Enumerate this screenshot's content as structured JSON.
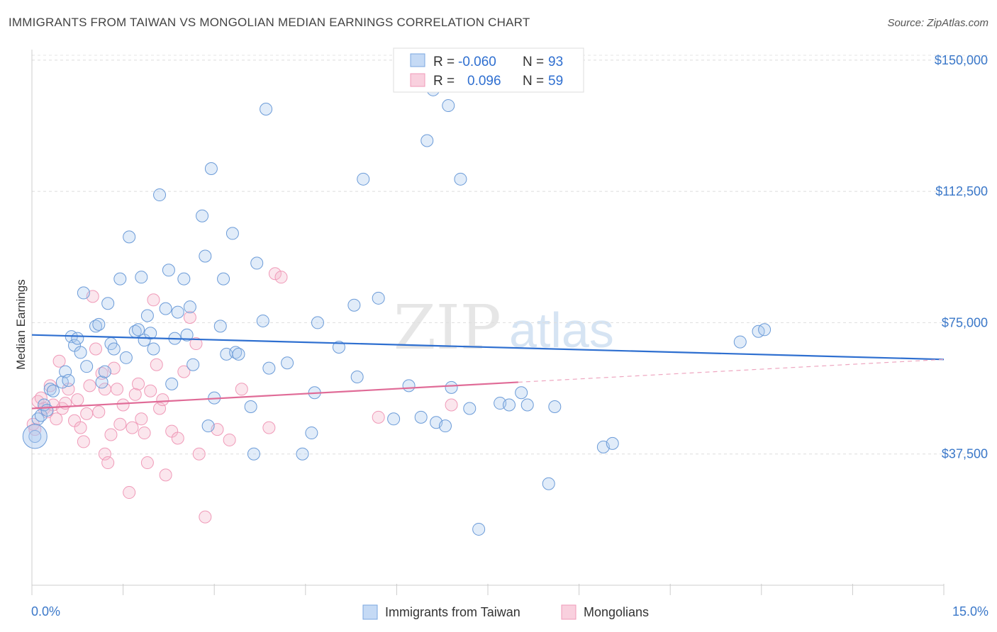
{
  "title": "IMMIGRANTS FROM TAIWAN VS MONGOLIAN MEDIAN EARNINGS CORRELATION CHART",
  "source": "Source: ZipAtlas.com",
  "watermark": {
    "zip": "ZIP",
    "atlas": "atlas"
  },
  "legend_top": {
    "rows": [
      {
        "r_label": "R =",
        "r_value": "-0.060",
        "n_label": "N =",
        "n_value": "93",
        "color": "#a9c8ef"
      },
      {
        "r_label": "R =",
        "r_value": "0.096",
        "n_label": "N =",
        "n_value": "59",
        "color": "#f4b8cc"
      }
    ]
  },
  "legend_bottom": [
    {
      "label": "Immigrants from Taiwan",
      "color": "#a9c8ef"
    },
    {
      "label": "Mongolians",
      "color": "#f4b8cc"
    }
  ],
  "chart_data": {
    "type": "scatter",
    "ylabel": "Median Earnings",
    "xlim": [
      0,
      15
    ],
    "ylim": [
      0,
      153000
    ],
    "x_tick_labels": [
      "0.0%",
      "15.0%"
    ],
    "y_ticks": [
      {
        "value": 37500,
        "label": "$37,500"
      },
      {
        "value": 75000,
        "label": "$75,000"
      },
      {
        "value": 112500,
        "label": "$112,500"
      },
      {
        "value": 150000,
        "label": "$150,000"
      }
    ],
    "series": [
      {
        "name": "Immigrants from Taiwan",
        "color": "#7aa7e0",
        "trend": {
          "x0": 0,
          "y0": 71500,
          "x1": 15,
          "y1": 64500,
          "color": "#2e6fd0"
        },
        "points": [
          [
            0.05,
            42500
          ],
          [
            0.1,
            47500
          ],
          [
            0.15,
            48500
          ],
          [
            0.2,
            51500
          ],
          [
            0.25,
            50000
          ],
          [
            0.3,
            56000
          ],
          [
            0.35,
            55500
          ],
          [
            0.5,
            58000
          ],
          [
            0.55,
            61000
          ],
          [
            0.6,
            58500
          ],
          [
            0.65,
            71000
          ],
          [
            0.7,
            68500
          ],
          [
            0.75,
            70500
          ],
          [
            0.8,
            66500
          ],
          [
            0.85,
            83500
          ],
          [
            0.9,
            62500
          ],
          [
            1.05,
            74000
          ],
          [
            1.1,
            74500
          ],
          [
            1.15,
            58000
          ],
          [
            1.2,
            61000
          ],
          [
            1.25,
            80500
          ],
          [
            1.3,
            69000
          ],
          [
            1.35,
            67500
          ],
          [
            1.45,
            87500
          ],
          [
            1.55,
            65000
          ],
          [
            1.6,
            99500
          ],
          [
            1.7,
            72500
          ],
          [
            1.75,
            73000
          ],
          [
            1.8,
            88000
          ],
          [
            1.85,
            70000
          ],
          [
            1.9,
            77000
          ],
          [
            1.95,
            72000
          ],
          [
            2.0,
            67500
          ],
          [
            2.1,
            111500
          ],
          [
            2.2,
            79000
          ],
          [
            2.25,
            90000
          ],
          [
            2.3,
            57500
          ],
          [
            2.35,
            70500
          ],
          [
            2.4,
            78000
          ],
          [
            2.5,
            87500
          ],
          [
            2.55,
            71500
          ],
          [
            2.6,
            79500
          ],
          [
            2.65,
            63000
          ],
          [
            2.8,
            105500
          ],
          [
            2.85,
            94000
          ],
          [
            2.9,
            45500
          ],
          [
            2.95,
            119000
          ],
          [
            3.0,
            53500
          ],
          [
            3.1,
            74000
          ],
          [
            3.15,
            87500
          ],
          [
            3.2,
            66000
          ],
          [
            3.3,
            100500
          ],
          [
            3.35,
            66500
          ],
          [
            3.4,
            66000
          ],
          [
            3.6,
            51000
          ],
          [
            3.65,
            37500
          ],
          [
            3.7,
            92000
          ],
          [
            3.8,
            75500
          ],
          [
            3.9,
            62000
          ],
          [
            3.85,
            136000
          ],
          [
            4.2,
            63500
          ],
          [
            4.45,
            37500
          ],
          [
            4.6,
            43500
          ],
          [
            4.65,
            55000
          ],
          [
            4.7,
            75000
          ],
          [
            5.05,
            68000
          ],
          [
            5.3,
            80000
          ],
          [
            5.35,
            59500
          ],
          [
            5.45,
            116000
          ],
          [
            5.7,
            82000
          ],
          [
            5.95,
            47500
          ],
          [
            6.2,
            57000
          ],
          [
            6.4,
            48000
          ],
          [
            6.5,
            127000
          ],
          [
            6.6,
            141500
          ],
          [
            6.65,
            46500
          ],
          [
            6.8,
            45500
          ],
          [
            6.85,
            137000
          ],
          [
            6.9,
            56500
          ],
          [
            7.05,
            116000
          ],
          [
            7.2,
            50500
          ],
          [
            7.35,
            16000
          ],
          [
            7.7,
            52000
          ],
          [
            7.85,
            51500
          ],
          [
            8.05,
            55000
          ],
          [
            8.15,
            51500
          ],
          [
            8.5,
            29000
          ],
          [
            9.4,
            39500
          ],
          [
            9.55,
            40500
          ],
          [
            11.65,
            69500
          ],
          [
            11.95,
            72500
          ],
          [
            12.05,
            73000
          ],
          [
            8.6,
            51000
          ]
        ],
        "big_point": [
          0.05,
          42500
        ]
      },
      {
        "name": "Mongolians",
        "color": "#f09ab8",
        "trend": {
          "x0": 0,
          "y0": 50500,
          "x1": 8.0,
          "y1": 58000,
          "x_dash_end": 15,
          "y_dash_end": 64500,
          "color": "#e06b97"
        },
        "points": [
          [
            0.02,
            46000
          ],
          [
            0.05,
            44500
          ],
          [
            0.1,
            52500
          ],
          [
            0.15,
            53500
          ],
          [
            0.2,
            50500
          ],
          [
            0.25,
            49500
          ],
          [
            0.3,
            57000
          ],
          [
            0.35,
            51500
          ],
          [
            0.4,
            47500
          ],
          [
            0.45,
            64000
          ],
          [
            0.5,
            50500
          ],
          [
            0.55,
            52000
          ],
          [
            0.6,
            56000
          ],
          [
            0.7,
            47000
          ],
          [
            0.75,
            53000
          ],
          [
            0.8,
            45000
          ],
          [
            0.85,
            41000
          ],
          [
            0.9,
            49000
          ],
          [
            0.95,
            57000
          ],
          [
            1.0,
            82500
          ],
          [
            1.05,
            67500
          ],
          [
            1.1,
            49500
          ],
          [
            1.15,
            60500
          ],
          [
            1.2,
            37500
          ],
          [
            1.25,
            35000
          ],
          [
            1.3,
            43000
          ],
          [
            1.35,
            62000
          ],
          [
            1.4,
            56000
          ],
          [
            1.45,
            46000
          ],
          [
            1.5,
            51500
          ],
          [
            1.6,
            26500
          ],
          [
            1.65,
            45000
          ],
          [
            1.7,
            54500
          ],
          [
            1.75,
            57500
          ],
          [
            1.8,
            47500
          ],
          [
            1.85,
            43500
          ],
          [
            1.9,
            35000
          ],
          [
            1.95,
            55500
          ],
          [
            2.0,
            81500
          ],
          [
            2.05,
            63000
          ],
          [
            2.1,
            50500
          ],
          [
            2.15,
            53000
          ],
          [
            2.2,
            31500
          ],
          [
            2.3,
            44000
          ],
          [
            2.4,
            42000
          ],
          [
            2.5,
            61000
          ],
          [
            2.6,
            76500
          ],
          [
            2.7,
            69000
          ],
          [
            2.75,
            37500
          ],
          [
            2.85,
            19500
          ],
          [
            3.05,
            44500
          ],
          [
            3.25,
            41500
          ],
          [
            3.45,
            56000
          ],
          [
            3.9,
            45000
          ],
          [
            4.0,
            89000
          ],
          [
            4.1,
            88000
          ],
          [
            5.7,
            48000
          ],
          [
            6.9,
            51500
          ],
          [
            1.2,
            56000
          ]
        ]
      }
    ]
  }
}
